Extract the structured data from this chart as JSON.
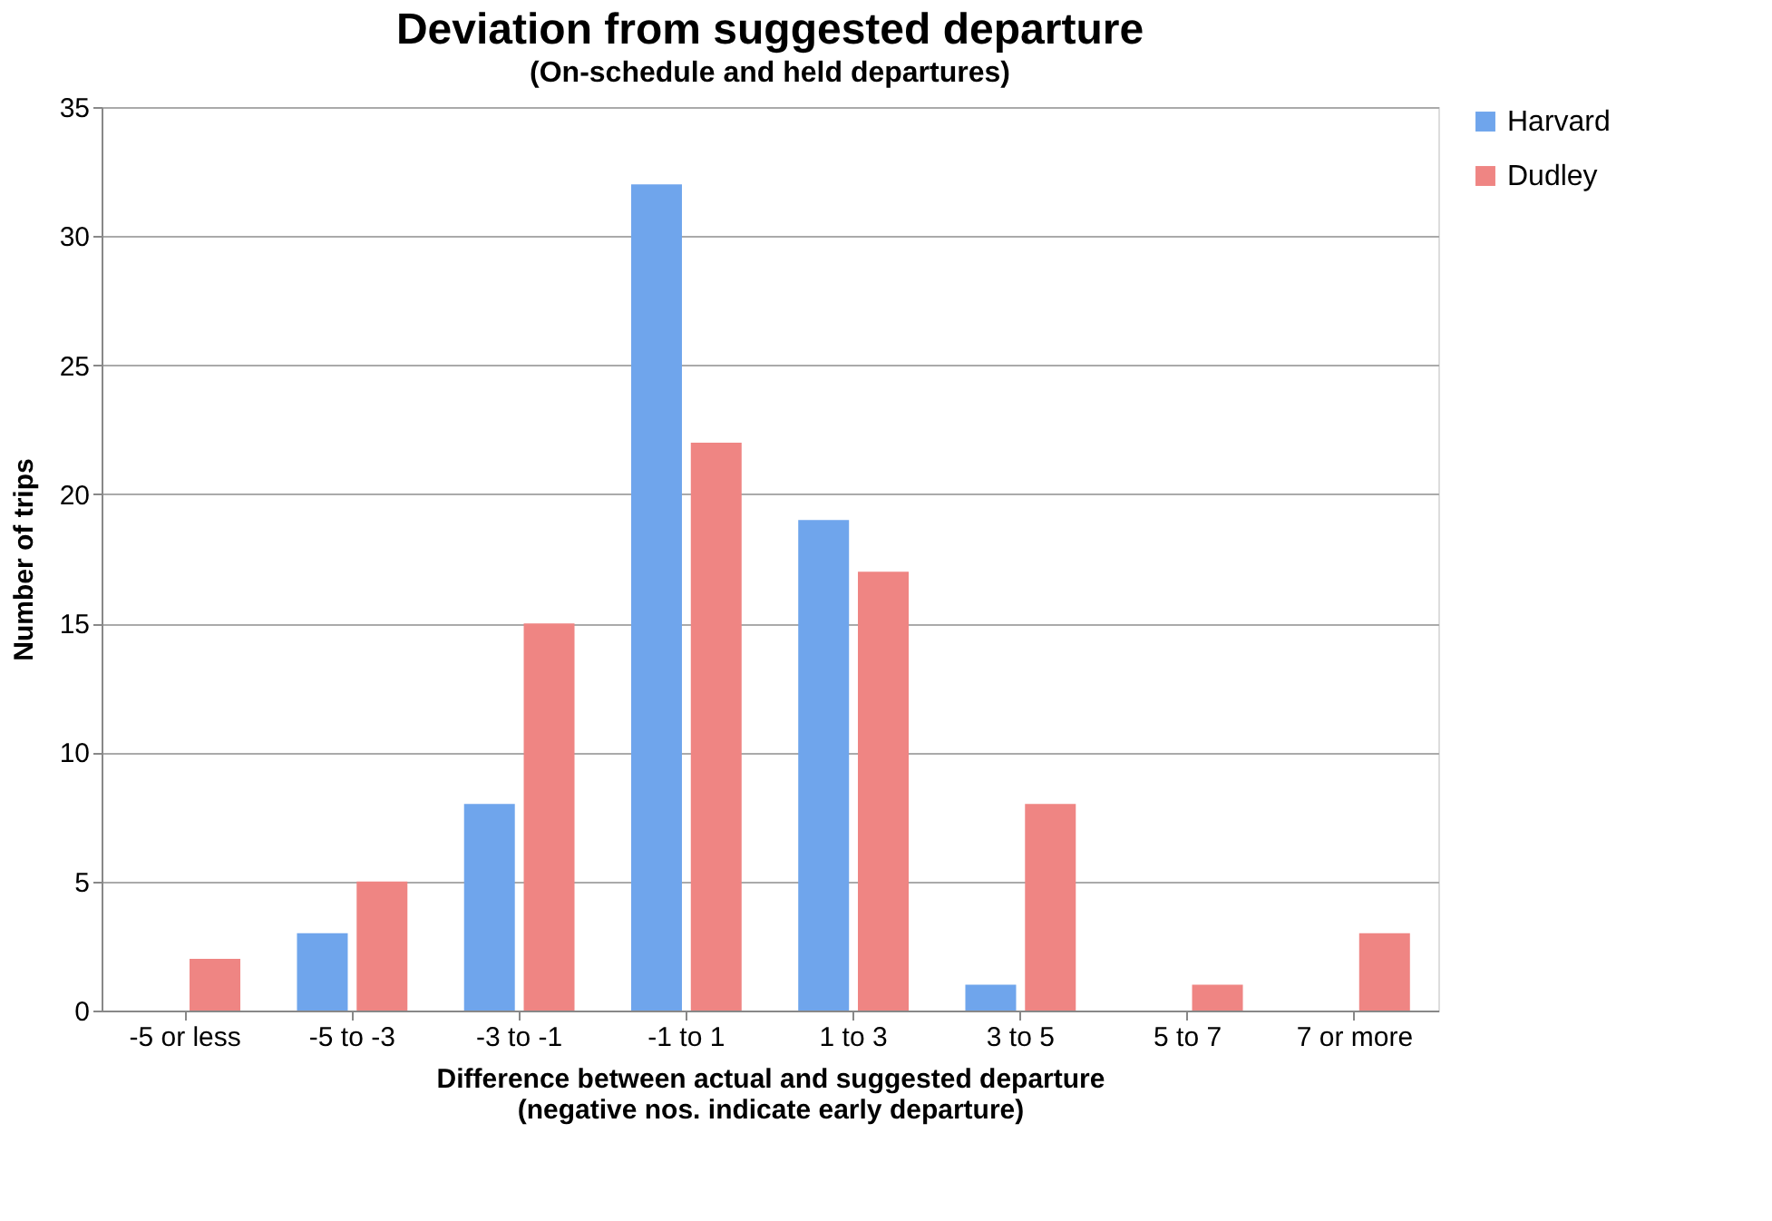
{
  "chart_data": {
    "type": "bar",
    "title": "Deviation from suggested departure",
    "subtitle": "(On-schedule and held departures)",
    "xlabel": "Difference between actual and suggested departure\n(negative nos. indicate early departure)",
    "ylabel": "Number of trips",
    "categories": [
      "-5 or less",
      "-5 to -3",
      "-3 to -1",
      "-1 to 1",
      "1 to 3",
      "3 to 5",
      "5 to 7",
      "7 or more"
    ],
    "series": [
      {
        "name": "Harvard",
        "color": "#6fa5ec",
        "values": [
          0,
          3,
          8,
          32,
          19,
          1,
          0,
          0
        ]
      },
      {
        "name": "Dudley",
        "color": "#ef8583",
        "values": [
          2,
          5,
          15,
          22,
          17,
          8,
          1,
          3
        ]
      }
    ],
    "ylim": [
      0,
      35
    ],
    "yticks": [
      0,
      5,
      10,
      15,
      20,
      25,
      30,
      35
    ],
    "grid": "y",
    "legend": "right"
  }
}
